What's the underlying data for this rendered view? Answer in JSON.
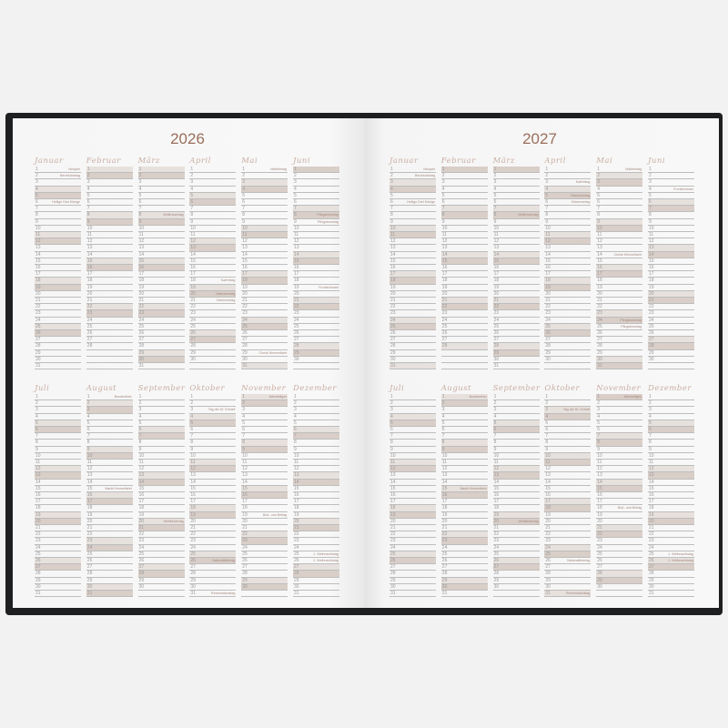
{
  "colors": {
    "saturday": "#e7e1dd",
    "sunday": "#d9cec8",
    "year_title": "#9a6e5c",
    "month_name": "#c9aea2",
    "cover": "#1d1f21"
  },
  "pages": [
    {
      "year": "2026",
      "months": [
        {
          "name": "Januar",
          "days": 31,
          "saturdays": [
            4,
            11,
            18,
            25
          ],
          "sundays": [
            5,
            12,
            19,
            26
          ],
          "holidays": {
            "1": "Neujahr",
            "2": "Berchtoldstag",
            "6": "Heilige Drei Könige"
          }
        },
        {
          "name": "Februar",
          "days": 28,
          "saturdays": [
            1,
            8,
            15,
            22
          ],
          "sundays": [
            2,
            9,
            16,
            23
          ],
          "holidays": {}
        },
        {
          "name": "März",
          "days": 31,
          "saturdays": [
            1,
            8,
            15,
            22,
            29
          ],
          "sundays": [
            2,
            9,
            16,
            23,
            30
          ],
          "holidays": {
            "8": "Weltfrauentag"
          }
        },
        {
          "name": "April",
          "days": 30,
          "saturdays": [
            5,
            12,
            19,
            26
          ],
          "sundays": [
            6,
            13,
            20,
            27
          ],
          "holidays": {
            "18": "Karfreitag",
            "20": "Ostersonntag",
            "21": "Ostermontag"
          }
        },
        {
          "name": "Mai",
          "days": 31,
          "saturdays": [
            3,
            10,
            17,
            24,
            31
          ],
          "sundays": [
            4,
            11,
            18,
            25
          ],
          "holidays": {
            "1": "Maifeiertag",
            "29": "Christi Himmelfahrt"
          }
        },
        {
          "name": "Juni",
          "days": 30,
          "saturdays": [
            7,
            14,
            21,
            28
          ],
          "sundays": [
            1,
            8,
            15,
            22,
            29
          ],
          "holidays": {
            "8": "Pfingstsonntag",
            "9": "Pfingstmontag",
            "19": "Fronleichnam"
          }
        },
        {
          "name": "Juli",
          "days": 31,
          "saturdays": [
            5,
            12,
            19,
            26
          ],
          "sundays": [
            6,
            13,
            20,
            27
          ],
          "holidays": {}
        },
        {
          "name": "August",
          "days": 31,
          "saturdays": [
            2,
            9,
            16,
            23,
            30
          ],
          "sundays": [
            3,
            10,
            17,
            24,
            31
          ],
          "holidays": {
            "1": "Bundesfeier",
            "15": "Mariä Himmelfahrt"
          }
        },
        {
          "name": "September",
          "days": 30,
          "saturdays": [
            6,
            13,
            20,
            27
          ],
          "sundays": [
            7,
            14,
            21,
            28
          ],
          "holidays": {
            "20": "Weltkindertag"
          }
        },
        {
          "name": "Oktober",
          "days": 31,
          "saturdays": [
            4,
            11,
            18,
            25
          ],
          "sundays": [
            5,
            12,
            19,
            26
          ],
          "holidays": {
            "3": "Tag der Dt. Einheit",
            "26": "Nationalfeiertag",
            "31": "Reformationstag"
          }
        },
        {
          "name": "November",
          "days": 30,
          "saturdays": [
            1,
            8,
            15,
            22,
            29
          ],
          "sundays": [
            2,
            9,
            16,
            23,
            30
          ],
          "holidays": {
            "1": "Allerheiligen",
            "19": "Buß- und Bettag"
          }
        },
        {
          "name": "Dezember",
          "days": 31,
          "saturdays": [
            6,
            13,
            20,
            27
          ],
          "sundays": [
            7,
            14,
            21,
            28
          ],
          "holidays": {
            "25": "1. Weihnachtstag",
            "26": "2. Weihnachtstag"
          }
        }
      ]
    },
    {
      "year": "2027",
      "months": [
        {
          "name": "Januar",
          "days": 31,
          "saturdays": [
            3,
            10,
            17,
            24,
            31
          ],
          "sundays": [
            4,
            11,
            18,
            25
          ],
          "holidays": {
            "1": "Neujahr",
            "2": "Berchtoldstag",
            "6": "Heilige Drei Könige"
          }
        },
        {
          "name": "Februar",
          "days": 28,
          "saturdays": [
            7,
            14,
            21,
            28
          ],
          "sundays": [
            1,
            8,
            15,
            22
          ],
          "holidays": {}
        },
        {
          "name": "März",
          "days": 31,
          "saturdays": [
            7,
            14,
            21,
            28
          ],
          "sundays": [
            1,
            8,
            15,
            22,
            29
          ],
          "holidays": {
            "8": "Weltfrauentag"
          }
        },
        {
          "name": "April",
          "days": 30,
          "saturdays": [
            4,
            11,
            18,
            25
          ],
          "sundays": [
            5,
            12,
            19,
            26
          ],
          "holidays": {
            "3": "Karfreitag",
            "5": "Ostersonntag",
            "6": "Ostermontag"
          }
        },
        {
          "name": "Mai",
          "days": 31,
          "saturdays": [
            2,
            9,
            16,
            23,
            30
          ],
          "sundays": [
            3,
            10,
            17,
            24,
            31
          ],
          "holidays": {
            "1": "Maifeiertag",
            "14": "Christi Himmelfahrt",
            "24": "Pfingstsonntag",
            "25": "Pfingstmontag"
          }
        },
        {
          "name": "Juni",
          "days": 30,
          "saturdays": [
            6,
            13,
            20,
            27
          ],
          "sundays": [
            7,
            14,
            21,
            28
          ],
          "holidays": {
            "4": "Fronleichnam"
          }
        },
        {
          "name": "Juli",
          "days": 31,
          "saturdays": [
            4,
            11,
            18,
            25
          ],
          "sundays": [
            5,
            12,
            19,
            26
          ],
          "holidays": {}
        },
        {
          "name": "August",
          "days": 31,
          "saturdays": [
            1,
            8,
            15,
            22,
            29
          ],
          "sundays": [
            2,
            9,
            16,
            23,
            30
          ],
          "holidays": {
            "1": "Bundesfeier",
            "15": "Mariä Himmelfahrt"
          }
        },
        {
          "name": "September",
          "days": 30,
          "saturdays": [
            5,
            12,
            19,
            26
          ],
          "sundays": [
            6,
            13,
            20,
            27
          ],
          "holidays": {
            "20": "Weltkindertag"
          }
        },
        {
          "name": "Oktober",
          "days": 31,
          "saturdays": [
            3,
            10,
            17,
            24,
            31
          ],
          "sundays": [
            4,
            11,
            18,
            25
          ],
          "holidays": {
            "3": "Tag der Dt. Einheit",
            "26": "Nationalfeiertag",
            "31": "Reformationstag"
          }
        },
        {
          "name": "November",
          "days": 30,
          "saturdays": [
            7,
            14,
            21,
            28
          ],
          "sundays": [
            1,
            8,
            15,
            22,
            29
          ],
          "holidays": {
            "1": "Allerheiligen",
            "18": "Buß- und Bettag"
          }
        },
        {
          "name": "Dezember",
          "days": 31,
          "saturdays": [
            5,
            12,
            19,
            26
          ],
          "sundays": [
            6,
            13,
            20,
            27
          ],
          "holidays": {
            "25": "1. Weihnachtstag",
            "26": "2. Weihnachtstag"
          }
        }
      ]
    }
  ]
}
